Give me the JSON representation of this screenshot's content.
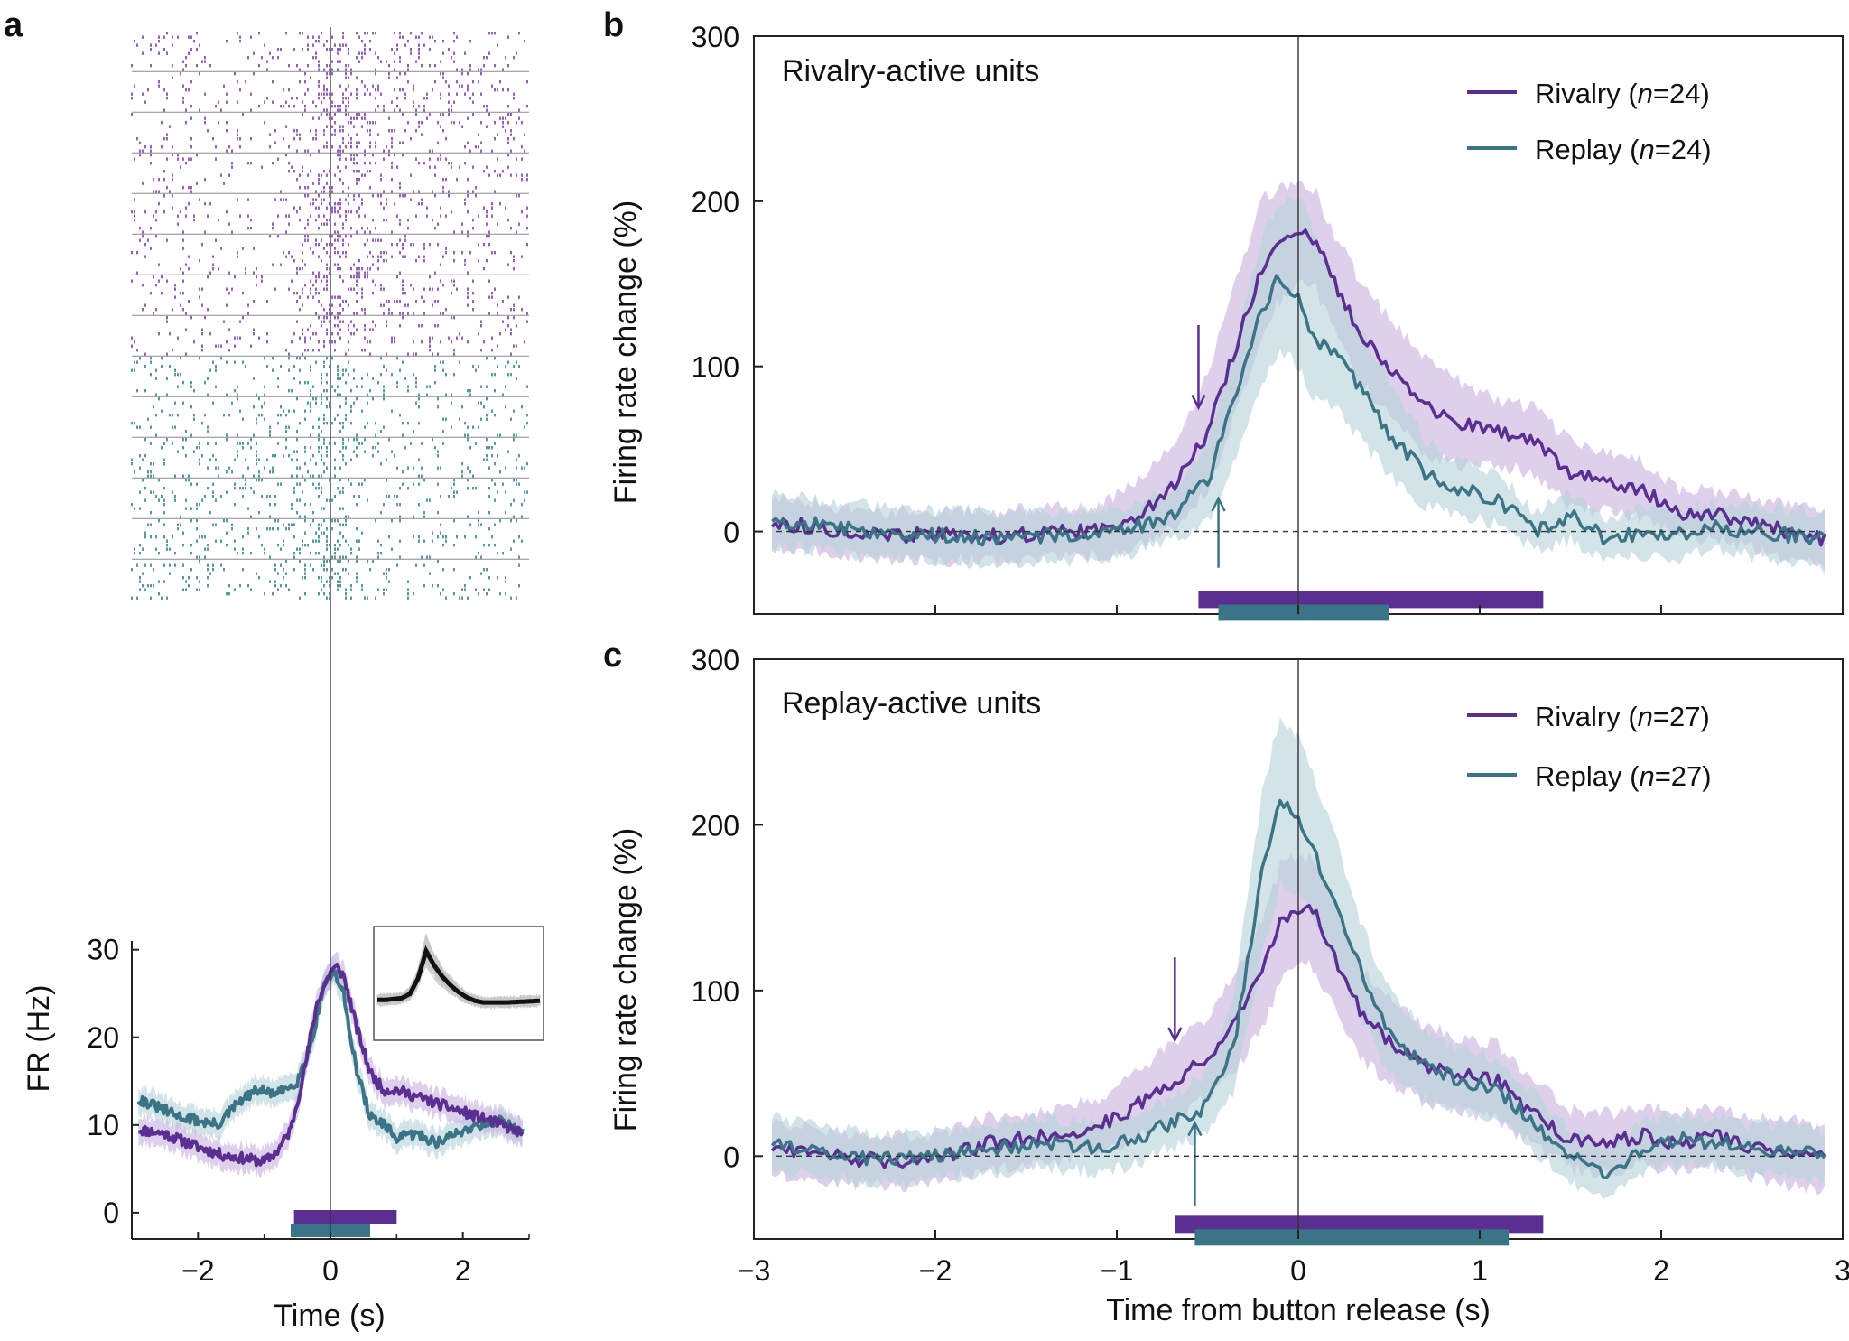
{
  "figure": {
    "panel_a_letter": "a",
    "panel_b_letter": "b",
    "panel_c_letter": "c"
  },
  "colors": {
    "rivalry": "#5b2e91",
    "replay": "#3b7486",
    "rivalry_raster": "#7b3aa8",
    "replay_raster": "#2e7f8c",
    "rivalry_band": "#c9b3de",
    "replay_band": "#b7d3da",
    "inset_trace": "#111111",
    "inset_cloud": "#c8c8c8"
  },
  "chart_data": [
    {
      "id": "a",
      "type": "line",
      "title": "",
      "xlabel": "Time (s)",
      "ylabel": "FR (Hz)",
      "xlim": [
        -3,
        3
      ],
      "ylim": [
        -3,
        31
      ],
      "xticks": [
        -2,
        0,
        2
      ],
      "xtick_labels": [
        "−2",
        "0",
        "2"
      ],
      "yticks": [
        0,
        10,
        20,
        30
      ],
      "ytick_labels": [
        "0",
        "10",
        "20",
        "30"
      ],
      "raster": {
        "rivalry_trials": 40,
        "replay_trials": 30
      },
      "series": [
        {
          "name": "Rivalry",
          "color_key": "rivalry",
          "x": [
            -2.9,
            -2.5,
            -2.0,
            -1.6,
            -1.3,
            -1.0,
            -0.8,
            -0.6,
            -0.4,
            -0.2,
            0.0,
            0.1,
            0.2,
            0.4,
            0.6,
            0.8,
            1.0,
            1.4,
            1.8,
            2.2,
            2.6,
            2.9
          ],
          "y": [
            9.5,
            9,
            7.5,
            6.5,
            6.2,
            5.8,
            7,
            9.5,
            16,
            24,
            27.5,
            28,
            27,
            21,
            16,
            14,
            14,
            13,
            12,
            11,
            10,
            9
          ],
          "band": 1.5
        },
        {
          "name": "Replay",
          "color_key": "replay",
          "x": [
            -2.9,
            -2.6,
            -2.3,
            -2.0,
            -1.7,
            -1.4,
            -1.1,
            -0.8,
            -0.5,
            -0.3,
            -0.1,
            0.05,
            0.2,
            0.4,
            0.6,
            0.8,
            1.0,
            1.3,
            1.6,
            1.9,
            2.2,
            2.6,
            2.9
          ],
          "y": [
            13,
            12,
            11,
            10.5,
            10,
            12.5,
            14,
            13.5,
            15,
            19,
            26,
            27.5,
            25,
            16,
            11,
            10,
            8.5,
            9,
            8,
            9,
            10,
            10.5,
            9
          ],
          "band": 1.5
        }
      ],
      "bars": [
        {
          "name": "Rivalry",
          "color_key": "rivalry",
          "start": -0.55,
          "end": 1.0
        },
        {
          "name": "Replay",
          "color_key": "replay",
          "start": -0.6,
          "end": 0.6
        }
      ],
      "inset": {
        "x": [
          0,
          5,
          10,
          15,
          20,
          25,
          30,
          35,
          40,
          45,
          50,
          55,
          60,
          65,
          70,
          75,
          80,
          90,
          100
        ],
        "y": [
          0.05,
          0.05,
          0.06,
          0.07,
          0.12,
          0.3,
          0.62,
          0.45,
          0.32,
          0.22,
          0.14,
          0.08,
          0.04,
          0.02,
          0.02,
          0.02,
          0.02,
          0.03,
          0.04
        ]
      }
    },
    {
      "id": "b",
      "type": "line",
      "title": "Rivalry-active units",
      "xlabel": "",
      "ylabel": "Firing rate change (%)",
      "xlim": [
        -3,
        3
      ],
      "ylim": [
        -50,
        300
      ],
      "xticks": [],
      "xtick_labels": [],
      "yticks": [
        0,
        100,
        200,
        300
      ],
      "ytick_labels": [
        "0",
        "100",
        "200",
        "300"
      ],
      "legend": [
        "Rivalry (n=24)",
        "Replay (n=24)"
      ],
      "legend_parts": [
        {
          "pre": "Rivalry (",
          "n": "n",
          "post": "=24)"
        },
        {
          "pre": "Replay (",
          "n": "n",
          "post": "=24)"
        }
      ],
      "series": [
        {
          "name": "Rivalry (n=24)",
          "color_key": "rivalry",
          "x": [
            -2.9,
            -2.6,
            -2.3,
            -2.0,
            -1.7,
            -1.4,
            -1.1,
            -0.9,
            -0.7,
            -0.5,
            -0.35,
            -0.2,
            -0.1,
            0.0,
            0.1,
            0.2,
            0.35,
            0.5,
            0.7,
            0.9,
            1.1,
            1.3,
            1.5,
            1.7,
            1.9,
            2.1,
            2.3,
            2.5,
            2.7,
            2.9
          ],
          "y": [
            5,
            2,
            -3,
            -2,
            -3,
            -1,
            0,
            10,
            25,
            60,
            110,
            160,
            175,
            180,
            175,
            150,
            120,
            100,
            75,
            65,
            60,
            55,
            35,
            30,
            25,
            12,
            10,
            5,
            0,
            -5
          ],
          "lo": [
            -10,
            -12,
            -18,
            -17,
            -18,
            -16,
            -15,
            -10,
            0,
            25,
            70,
            120,
            140,
            150,
            145,
            120,
            90,
            70,
            45,
            40,
            40,
            35,
            15,
            12,
            8,
            -2,
            -5,
            -10,
            -18,
            -20
          ],
          "hi": [
            20,
            16,
            12,
            13,
            12,
            14,
            15,
            30,
            50,
            95,
            150,
            200,
            210,
            210,
            205,
            180,
            150,
            130,
            105,
            90,
            80,
            75,
            55,
            48,
            42,
            26,
            25,
            20,
            18,
            10
          ]
        },
        {
          "name": "Replay (n=24)",
          "color_key": "replay",
          "x": [
            -2.9,
            -2.6,
            -2.3,
            -2.0,
            -1.7,
            -1.4,
            -1.1,
            -0.9,
            -0.7,
            -0.5,
            -0.35,
            -0.2,
            -0.1,
            0.0,
            0.1,
            0.2,
            0.35,
            0.5,
            0.7,
            0.9,
            1.1,
            1.3,
            1.5,
            1.7,
            1.9,
            2.1,
            2.3,
            2.5,
            2.7,
            2.9
          ],
          "y": [
            8,
            3,
            0,
            -2,
            -4,
            -3,
            -2,
            2,
            10,
            30,
            80,
            135,
            155,
            140,
            115,
            110,
            85,
            60,
            35,
            25,
            20,
            0,
            10,
            -5,
            0,
            -2,
            3,
            0,
            -2,
            -5
          ],
          "lo": [
            -8,
            -12,
            -15,
            -17,
            -19,
            -18,
            -17,
            -13,
            -5,
            5,
            45,
            90,
            110,
            100,
            78,
            75,
            55,
            35,
            15,
            8,
            5,
            -12,
            -5,
            -18,
            -14,
            -16,
            -11,
            -15,
            -18,
            -22
          ],
          "hi": [
            24,
            18,
            15,
            13,
            11,
            12,
            13,
            17,
            25,
            55,
            115,
            180,
            200,
            205,
            175,
            150,
            120,
            90,
            55,
            42,
            35,
            12,
            25,
            8,
            14,
            12,
            17,
            15,
            14,
            12
          ]
        }
      ],
      "bars": [
        {
          "name": "Rivalry",
          "color_key": "rivalry",
          "start": -0.55,
          "end": 1.35
        },
        {
          "name": "Replay",
          "color_key": "replay",
          "start": -0.44,
          "end": 0.5
        }
      ],
      "arrows": [
        {
          "name": "Rivalry onset",
          "color_key": "rivalry",
          "x": -0.55,
          "direction": "down",
          "y_tip": 75,
          "y_tail": 125
        },
        {
          "name": "Replay onset",
          "color_key": "replay",
          "x": -0.44,
          "direction": "up",
          "y_tip": 20,
          "y_tail": -22
        }
      ]
    },
    {
      "id": "c",
      "type": "line",
      "title": "Replay-active units",
      "xlabel": "Time from button release (s)",
      "ylabel": "Firing rate change (%)",
      "xlim": [
        -3,
        3
      ],
      "ylim": [
        -50,
        300
      ],
      "xticks": [
        -3,
        -2,
        -1,
        0,
        1,
        2,
        3
      ],
      "xtick_labels": [
        "−3",
        "−2",
        "−1",
        "0",
        "1",
        "2",
        "3"
      ],
      "yticks": [
        0,
        100,
        200,
        300
      ],
      "ytick_labels": [
        "0",
        "100",
        "200",
        "300"
      ],
      "legend": [
        "Rivalry (n=27)",
        "Replay (n=27)"
      ],
      "legend_parts": [
        {
          "pre": "Rivalry (",
          "n": "n",
          "post": "=27)"
        },
        {
          "pre": "Replay (",
          "n": "n",
          "post": "=27)"
        }
      ],
      "series": [
        {
          "name": "Rivalry (n=27)",
          "color_key": "rivalry",
          "x": [
            -2.9,
            -2.6,
            -2.3,
            -2.0,
            -1.7,
            -1.4,
            -1.1,
            -0.9,
            -0.7,
            -0.5,
            -0.35,
            -0.2,
            -0.1,
            0.0,
            0.1,
            0.2,
            0.35,
            0.5,
            0.7,
            0.9,
            1.1,
            1.3,
            1.5,
            1.7,
            1.9,
            2.1,
            2.3,
            2.5,
            2.7,
            2.9
          ],
          "y": [
            5,
            0,
            -3,
            -2,
            8,
            12,
            18,
            30,
            45,
            60,
            80,
            110,
            140,
            150,
            145,
            120,
            85,
            70,
            55,
            50,
            45,
            25,
            10,
            8,
            12,
            8,
            12,
            6,
            2,
            0
          ],
          "lo": [
            -10,
            -15,
            -18,
            -17,
            -8,
            -4,
            2,
            10,
            22,
            35,
            50,
            78,
            105,
            118,
            112,
            88,
            58,
            45,
            32,
            28,
            22,
            6,
            -8,
            -10,
            -5,
            -10,
            -6,
            -12,
            -18,
            -20
          ],
          "hi": [
            20,
            15,
            12,
            13,
            24,
            28,
            34,
            50,
            68,
            85,
            110,
            142,
            175,
            182,
            178,
            152,
            112,
            95,
            78,
            72,
            68,
            44,
            28,
            26,
            29,
            26,
            30,
            24,
            22,
            20
          ]
        },
        {
          "name": "Replay (n=27)",
          "color_key": "replay",
          "x": [
            -2.9,
            -2.6,
            -2.3,
            -2.0,
            -1.7,
            -1.4,
            -1.1,
            -0.9,
            -0.7,
            -0.5,
            -0.35,
            -0.2,
            -0.1,
            0.0,
            0.1,
            0.2,
            0.35,
            0.5,
            0.7,
            0.9,
            1.1,
            1.3,
            1.5,
            1.7,
            1.9,
            2.1,
            2.3,
            2.5,
            2.7,
            2.9
          ],
          "y": [
            8,
            3,
            -2,
            0,
            5,
            8,
            5,
            10,
            20,
            30,
            70,
            170,
            215,
            205,
            180,
            155,
            110,
            75,
            55,
            45,
            40,
            20,
            0,
            -10,
            5,
            10,
            8,
            5,
            3,
            0
          ],
          "lo": [
            -8,
            -12,
            -17,
            -15,
            -10,
            -7,
            -10,
            -5,
            5,
            12,
            40,
            120,
            165,
            160,
            140,
            115,
            82,
            50,
            35,
            27,
            22,
            3,
            -15,
            -25,
            -10,
            -5,
            -8,
            -10,
            -13,
            -15
          ],
          "hi": [
            24,
            18,
            13,
            15,
            20,
            23,
            20,
            25,
            35,
            50,
            100,
            220,
            265,
            255,
            225,
            195,
            140,
            100,
            75,
            63,
            58,
            37,
            15,
            5,
            20,
            25,
            24,
            20,
            19,
            15
          ]
        }
      ],
      "bars": [
        {
          "name": "Rivalry",
          "color_key": "rivalry",
          "start": -0.68,
          "end": 1.35
        },
        {
          "name": "Replay",
          "color_key": "replay",
          "start": -0.57,
          "end": 1.16
        }
      ],
      "arrows": [
        {
          "name": "Rivalry onset",
          "color_key": "rivalry",
          "x": -0.68,
          "direction": "down",
          "y_tip": 70,
          "y_tail": 120
        },
        {
          "name": "Replay onset",
          "color_key": "replay",
          "x": -0.57,
          "direction": "up",
          "y_tip": 20,
          "y_tail": -30
        }
      ]
    }
  ]
}
